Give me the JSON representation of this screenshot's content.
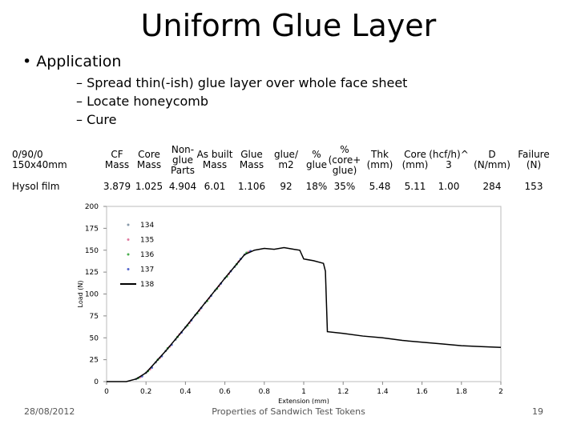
{
  "header": {
    "title": "Uniform Glue Layer"
  },
  "bullets": {
    "main": "Application",
    "sub": [
      "Spread thin(-ish) glue layer over whole face sheet",
      "Locate honeycomb",
      "Cure"
    ]
  },
  "table": {
    "header": [
      "0/90/0\n150x40mm",
      "CF\nMass",
      "Core\nMass",
      "Non-\nglue\nParts",
      "As built\nMass",
      "Glue\nMass",
      "glue/\nm2",
      "%\nglue",
      "%\n(core+\nglue)",
      "Thk\n(mm)",
      "Core\n(mm)",
      "(hcf/h)^\n3",
      "D\n(N/mm)",
      "Failure\n(N)"
    ],
    "rows": [
      [
        "Hysol film",
        "3.879",
        "1.025",
        "4.904",
        "6.01",
        "1.106",
        "92",
        "18%",
        "35%",
        "5.48",
        "5.11",
        "1.00",
        "284",
        "153"
      ]
    ]
  },
  "chart_data": {
    "type": "line",
    "x_label": "Extension (mm)",
    "y_label": "Load (N)",
    "xlim": [
      0,
      2
    ],
    "xticks": [
      0,
      0.2,
      0.4,
      0.6,
      0.8,
      1,
      1.2,
      1.4,
      1.6,
      1.8,
      2
    ],
    "ylim": [
      0,
      200
    ],
    "yticks": [
      0,
      25,
      50,
      75,
      100,
      125,
      150,
      175,
      200
    ],
    "series": [
      {
        "name": "134",
        "color": "#8899aa",
        "mode": "markers",
        "x": [
          0.15,
          0.2,
          0.25,
          0.3,
          0.35,
          0.4,
          0.45,
          0.5,
          0.55,
          0.6,
          0.65,
          0.7
        ],
        "values": [
          3,
          10,
          22,
          35,
          48,
          62,
          76,
          90,
          104,
          118,
          131,
          145
        ]
      },
      {
        "name": "135",
        "color": "#e07aa0",
        "mode": "markers",
        "x": [
          0.17,
          0.22,
          0.27,
          0.32,
          0.37,
          0.42,
          0.47,
          0.52,
          0.57,
          0.62,
          0.67,
          0.72
        ],
        "values": [
          5,
          14,
          27,
          40,
          54,
          67,
          81,
          95,
          109,
          123,
          137,
          148
        ]
      },
      {
        "name": "136",
        "color": "#4caf50",
        "mode": "markers",
        "x": [
          0.16,
          0.21,
          0.26,
          0.31,
          0.36,
          0.41,
          0.46,
          0.51,
          0.56,
          0.61,
          0.66,
          0.71
        ],
        "values": [
          4,
          12,
          25,
          38,
          51,
          64,
          78,
          92,
          106,
          120,
          134,
          147
        ]
      },
      {
        "name": "137",
        "color": "#5566cc",
        "mode": "markers",
        "x": [
          0.18,
          0.23,
          0.28,
          0.33,
          0.38,
          0.43,
          0.48,
          0.53,
          0.58,
          0.63,
          0.68,
          0.73
        ],
        "values": [
          6,
          16,
          29,
          42,
          56,
          70,
          84,
          98,
          112,
          126,
          140,
          149
        ]
      },
      {
        "name": "138",
        "color": "#000000",
        "mode": "line",
        "x": [
          0,
          0.1,
          0.15,
          0.2,
          0.3,
          0.4,
          0.5,
          0.6,
          0.7,
          0.75,
          0.8,
          0.85,
          0.9,
          0.95,
          0.98,
          1.0,
          1.05,
          1.1,
          1.11,
          1.12,
          1.2,
          1.3,
          1.4,
          1.5,
          1.6,
          1.7,
          1.8,
          1.9,
          2.0
        ],
        "values": [
          0,
          0,
          3,
          10,
          35,
          62,
          90,
          118,
          145,
          150,
          152,
          151,
          153,
          151,
          150,
          140,
          138,
          135,
          126,
          57,
          55,
          52,
          50,
          47,
          45,
          43,
          41,
          40,
          39
        ]
      }
    ]
  },
  "footer": {
    "date": "28/08/2012",
    "text": "Properties of Sandwich Test Tokens",
    "page": "19"
  }
}
